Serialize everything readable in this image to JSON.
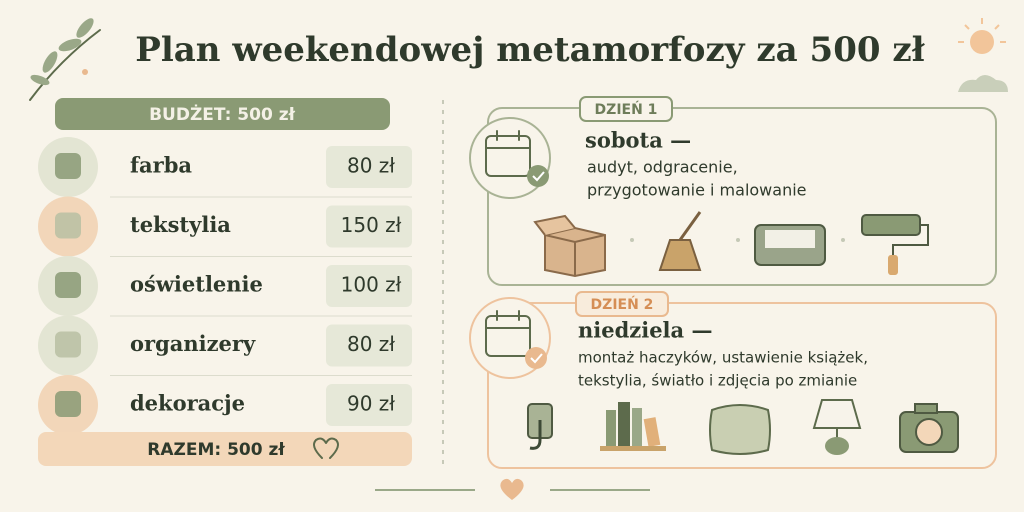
{
  "title": "Plan weekendowej metamorfozy za 500 zł",
  "budget": {
    "header": "BUDŻET: 500 zł",
    "items": [
      {
        "name": "farba",
        "amount": "80 zł"
      },
      {
        "name": "tekstylia",
        "amount": "150 zł"
      },
      {
        "name": "oświetlenie",
        "amount": "100 zł"
      },
      {
        "name": "organizery",
        "amount": "80 zł"
      },
      {
        "name": "dekoracje",
        "amount": "90 zł"
      }
    ],
    "total": "RAZEM: 500 zł"
  },
  "days": [
    {
      "label": "DZIEŃ 1",
      "title": "sobota —",
      "lines": [
        "audyt, odgracenie,",
        "przygotowanie i malowanie"
      ]
    },
    {
      "label": "DZIEŃ 2",
      "title": "niedziela —",
      "lines": [
        "montaż haczyków, ustawienie książek,",
        "tekstylia, światło i zdjęcia po zmianie"
      ]
    }
  ]
}
